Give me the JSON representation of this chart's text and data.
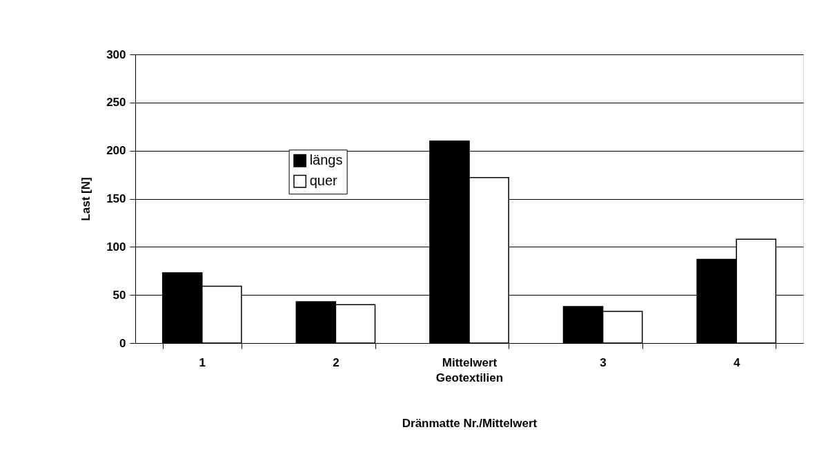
{
  "chart_data": {
    "type": "bar",
    "xlabel": "Dränmatte Nr./Mittelwert",
    "ylabel": "Last [N]",
    "categories": [
      "1",
      "2",
      "Mittelwert\nGeotextilien",
      "3",
      "4"
    ],
    "series": [
      {
        "name": "längs",
        "color": "#000000",
        "values": [
          73,
          43,
          210,
          38,
          87
        ]
      },
      {
        "name": "quer",
        "color": "#ffffff",
        "values": [
          59,
          40,
          172,
          33,
          108
        ]
      }
    ],
    "ylim": [
      0,
      300
    ],
    "yticks": [
      0,
      50,
      100,
      150,
      200,
      250,
      300
    ],
    "grid": "y",
    "legend": "top left"
  }
}
